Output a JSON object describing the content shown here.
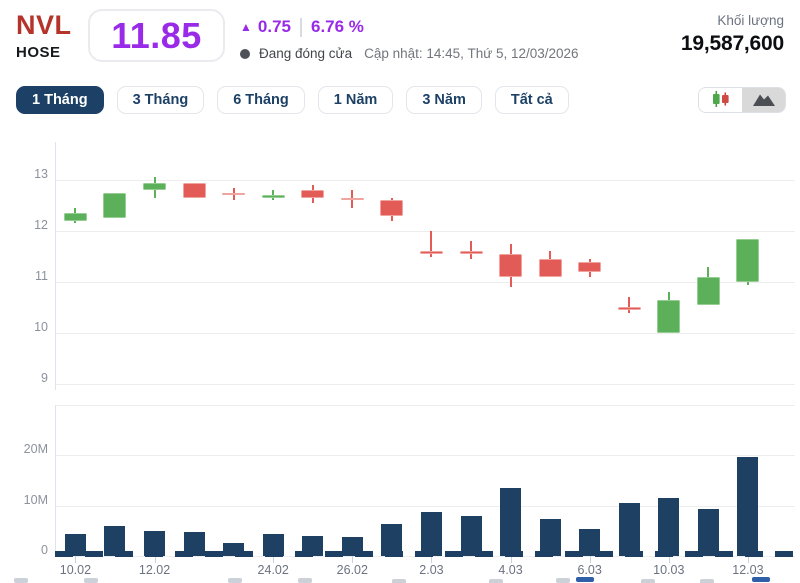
{
  "header": {
    "symbol": "NVL",
    "exchange": "HOSE",
    "price": "11.85",
    "change": "0.75",
    "change_percent": "6.76 %",
    "status_text": "Đang đóng cửa",
    "updated_text": "Cập nhật: 14:45, Thứ 5, 12/03/2026",
    "volume_label": "Khối lượng",
    "volume_value": "19,587,600"
  },
  "icons": {
    "up_arrow": "▲",
    "status_dot": "●",
    "chart_type_icons": [
      "candlestick-chart-icon",
      "area-chart-icon"
    ]
  },
  "colors": {
    "ceiling_purple": "#992BE8",
    "symbol_red": "#B4332B",
    "navy": "#1D4166",
    "up_green": "#5CB05A",
    "down_red": "#E25B56",
    "volume_bar": "#1E4063",
    "grid": "#ededed",
    "axis_text": "#8b929c"
  },
  "toolbar": {
    "tabs": [
      {
        "id": "tab-1-thang",
        "label": "1 Tháng",
        "active": true
      },
      {
        "id": "tab-3-thang",
        "label": "3 Tháng",
        "active": false
      },
      {
        "id": "tab-6-thang",
        "label": "6 Tháng",
        "active": false
      },
      {
        "id": "tab-1-nam",
        "label": "1 Năm",
        "active": false
      },
      {
        "id": "tab-3-nam",
        "label": "3 Năm",
        "active": false
      },
      {
        "id": "tab-tat-ca",
        "label": "Tất cả",
        "active": false
      }
    ],
    "chart_type_buttons": [
      {
        "id": "candlestick-chart-button",
        "icon": "candlestick-chart-icon",
        "active": true
      },
      {
        "id": "area-chart-button",
        "icon": "area-chart-icon",
        "active": false
      }
    ]
  },
  "chart_data": [
    {
      "type": "candlestick",
      "title": "NVL price (1 month)",
      "yticks": [
        13,
        12,
        11,
        10,
        9
      ],
      "ylim": [
        8.8,
        13.4
      ],
      "grid": true,
      "up_color": "#5CB05A",
      "down_color": "#E25B56",
      "ohlc": [
        [
          12.2,
          12.45,
          12.15,
          12.35
        ],
        [
          12.25,
          12.75,
          12.25,
          12.75
        ],
        [
          12.8,
          13.05,
          12.65,
          12.95
        ],
        [
          12.95,
          12.95,
          12.65,
          12.65
        ],
        [
          12.75,
          12.85,
          12.6,
          12.7
        ],
        [
          12.65,
          12.8,
          12.6,
          12.7
        ],
        [
          12.8,
          12.9,
          12.55,
          12.65
        ],
        [
          12.65,
          12.8,
          12.45,
          12.6
        ],
        [
          12.6,
          12.65,
          12.2,
          12.3
        ],
        [
          11.6,
          12.0,
          11.5,
          11.55
        ],
        [
          11.6,
          11.8,
          11.45,
          11.55
        ],
        [
          11.55,
          11.75,
          10.9,
          11.1
        ],
        [
          11.45,
          11.6,
          11.1,
          11.1
        ],
        [
          11.4,
          11.45,
          11.1,
          11.2
        ],
        [
          10.5,
          10.7,
          10.4,
          10.45
        ],
        [
          10.0,
          10.8,
          10.0,
          10.65
        ],
        [
          10.55,
          11.3,
          10.55,
          11.1
        ],
        [
          11.0,
          11.85,
          10.95,
          11.85
        ]
      ],
      "x_tick_labels": [
        {
          "index": 0,
          "label": "10.02"
        },
        {
          "index": 2,
          "label": "12.02"
        },
        {
          "index": 5,
          "label": "24.02"
        },
        {
          "index": 7,
          "label": "26.02"
        },
        {
          "index": 9,
          "label": "2.03"
        },
        {
          "index": 11,
          "label": "4.03"
        },
        {
          "index": 13,
          "label": "6.03"
        },
        {
          "index": 15,
          "label": "10.03"
        },
        {
          "index": 17,
          "label": "12.03"
        }
      ]
    },
    {
      "type": "bar",
      "title": "NVL volume (1 month)",
      "ylabel": "",
      "ytick_labels": [
        "20M",
        "10M",
        "0"
      ],
      "ylim_millions": [
        0,
        30
      ],
      "bar_color": "#1E4063",
      "values_millions": [
        4.3,
        6.0,
        5.0,
        4.7,
        2.6,
        4.4,
        4.0,
        3.8,
        6.4,
        8.7,
        8.0,
        13.6,
        7.3,
        5.4,
        10.5,
        11.6,
        9.3,
        19.59
      ]
    }
  ]
}
